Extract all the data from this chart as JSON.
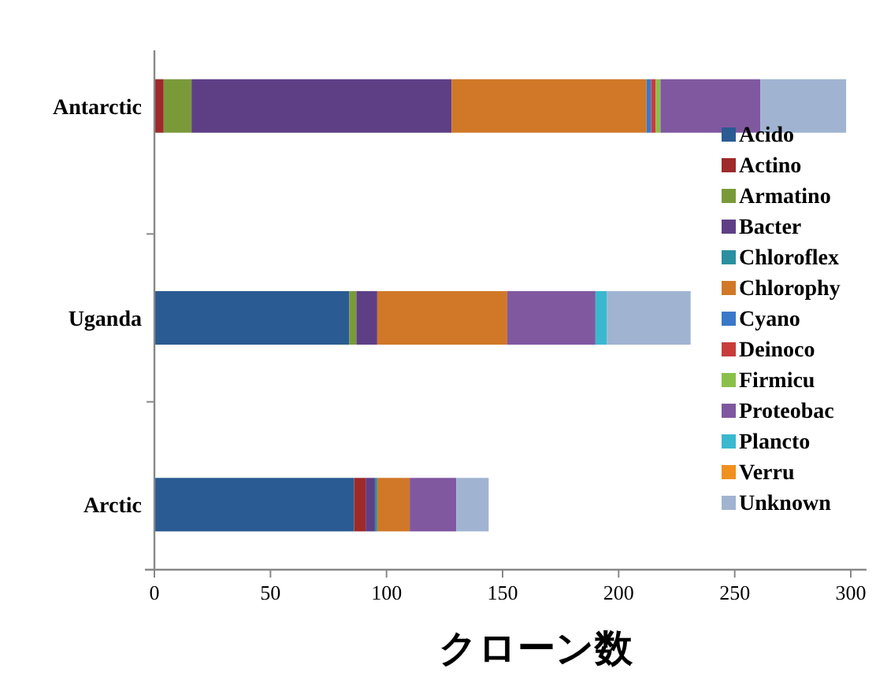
{
  "chart_data": {
    "type": "bar",
    "orientation": "horizontal",
    "stacked": true,
    "xlabel": "クローン数",
    "categories": [
      "Antarctic",
      "Uganda",
      "Arctic"
    ],
    "xlim": [
      0,
      300
    ],
    "xticks": [
      0,
      50,
      100,
      150,
      200,
      250,
      300
    ],
    "legend": "right",
    "grid": false,
    "series": [
      {
        "name": "Acido",
        "color": "#2a5b92",
        "values": [
          null,
          84,
          86
        ]
      },
      {
        "name": "Actino",
        "color": "#9e2a2a",
        "values": [
          4,
          null,
          5
        ]
      },
      {
        "name": "Armatino",
        "color": "#7a9a3a",
        "values": [
          12,
          3,
          null
        ]
      },
      {
        "name": "Bacter",
        "color": "#5e3f86",
        "values": [
          112,
          9,
          4
        ]
      },
      {
        "name": "Chloroflex",
        "color": "#2a8fa0",
        "values": [
          null,
          null,
          1
        ]
      },
      {
        "name": "Chlorophy",
        "color": "#d07828",
        "values": [
          84,
          56,
          14
        ]
      },
      {
        "name": "Cyano",
        "color": "#3a78c8",
        "values": [
          2,
          null,
          null
        ]
      },
      {
        "name": "Deinoco",
        "color": "#c83c3c",
        "values": [
          2,
          null,
          null
        ]
      },
      {
        "name": "Firmicu",
        "color": "#8ac04a",
        "values": [
          2,
          null,
          null
        ]
      },
      {
        "name": "Proteobac",
        "color": "#8058a0",
        "values": [
          43,
          38,
          20
        ]
      },
      {
        "name": "Plancto",
        "color": "#3ab8d0",
        "values": [
          null,
          5,
          null
        ]
      },
      {
        "name": "Verru",
        "color": "#f0901e",
        "values": [
          null,
          null,
          null
        ]
      },
      {
        "name": "Unknown",
        "color": "#a0b4d2",
        "values": [
          37,
          36,
          14
        ]
      }
    ]
  }
}
